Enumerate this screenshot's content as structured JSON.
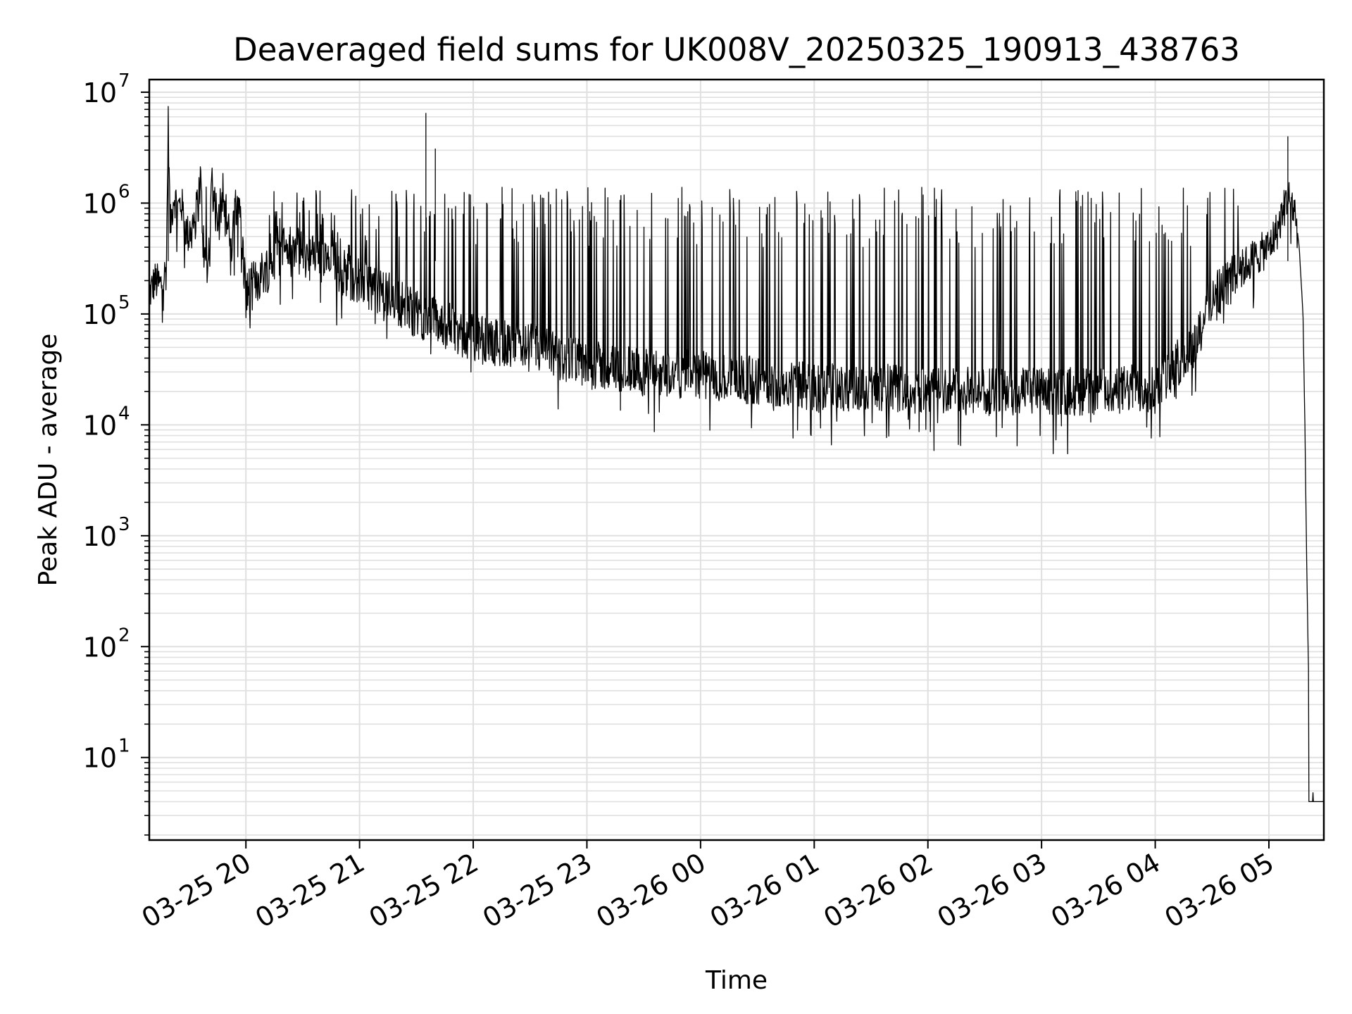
{
  "chart_data": {
    "type": "line",
    "title": "Deaveraged field sums for UK008V_20250325_190913_438763",
    "xlabel": "Time",
    "ylabel": "Peak ADU - average",
    "y_scale": "log",
    "ylim": [
      1.8,
      13000000
    ],
    "xlim": [
      "2025-03-25 19:09",
      "2025-03-26 05:29"
    ],
    "grid": true,
    "line_color": "#000000",
    "grid_color": "#e0e0e0",
    "x_ticks": [
      {
        "value": "2025-03-25 20:00",
        "label": "03-25 20"
      },
      {
        "value": "2025-03-25 21:00",
        "label": "03-25 21"
      },
      {
        "value": "2025-03-25 22:00",
        "label": "03-25 22"
      },
      {
        "value": "2025-03-25 23:00",
        "label": "03-25 23"
      },
      {
        "value": "2025-03-26 00:00",
        "label": "03-26 00"
      },
      {
        "value": "2025-03-26 01:00",
        "label": "03-26 01"
      },
      {
        "value": "2025-03-26 02:00",
        "label": "03-26 02"
      },
      {
        "value": "2025-03-26 03:00",
        "label": "03-26 03"
      },
      {
        "value": "2025-03-26 04:00",
        "label": "03-26 04"
      },
      {
        "value": "2025-03-26 05:00",
        "label": "03-26 05"
      }
    ],
    "y_ticks": [
      {
        "value": 10,
        "base": "10",
        "exp": "1"
      },
      {
        "value": 100,
        "base": "10",
        "exp": "2"
      },
      {
        "value": 1000,
        "base": "10",
        "exp": "3"
      },
      {
        "value": 10000,
        "base": "10",
        "exp": "4"
      },
      {
        "value": 100000,
        "base": "10",
        "exp": "5"
      },
      {
        "value": 1000000,
        "base": "10",
        "exp": "6"
      },
      {
        "value": 10000000,
        "base": "10",
        "exp": "7"
      }
    ],
    "series": [
      {
        "x": [
          "2025-03-25 19:09",
          "2025-03-25 19:12",
          "2025-03-25 19:15",
          "2025-03-25 19:18",
          "2025-03-25 19:19",
          "2025-03-25 19:20",
          "2025-03-25 19:22",
          "2025-03-25 19:24",
          "2025-03-25 19:26",
          "2025-03-25 19:28",
          "2025-03-25 19:30",
          "2025-03-25 19:32",
          "2025-03-25 19:34",
          "2025-03-25 19:36",
          "2025-03-25 19:38",
          "2025-03-25 19:40",
          "2025-03-25 19:42",
          "2025-03-25 19:45",
          "2025-03-25 19:48",
          "2025-03-25 19:52",
          "2025-03-25 19:56",
          "2025-03-25 20:00",
          "2025-03-25 20:10",
          "2025-03-25 20:20",
          "2025-03-25 20:30",
          "2025-03-25 20:40",
          "2025-03-25 20:50",
          "2025-03-25 21:00",
          "2025-03-25 21:15",
          "2025-03-25 21:30",
          "2025-03-25 21:45",
          "2025-03-25 22:00",
          "2025-03-25 22:30",
          "2025-03-25 23:00",
          "2025-03-25 23:30",
          "2025-03-26 00:00",
          "2025-03-26 00:30",
          "2025-03-26 01:00",
          "2025-03-26 01:30",
          "2025-03-26 02:00",
          "2025-03-26 02:30",
          "2025-03-26 03:00",
          "2025-03-26 03:30",
          "2025-03-26 04:00",
          "2025-03-26 04:20",
          "2025-03-26 04:30",
          "2025-03-26 04:40",
          "2025-03-26 04:50",
          "2025-03-26 05:00",
          "2025-03-26 05:05",
          "2025-03-26 05:08",
          "2025-03-26 05:10",
          "2025-03-26 05:12",
          "2025-03-26 05:14",
          "2025-03-26 05:16",
          "2025-03-26 05:18",
          "2025-03-26 05:19",
          "2025-03-26 05:20",
          "2025-03-26 05:21",
          "2025-03-26 05:22",
          "2025-03-26 05:29"
        ],
        "y": [
          150000,
          200000,
          180000,
          250000,
          5500000,
          600000,
          1200000,
          900000,
          1000000,
          600000,
          500000,
          700000,
          800000,
          1600000,
          300000,
          250000,
          1600000,
          700000,
          1400000,
          350000,
          1300000,
          150000,
          250000,
          400000,
          350000,
          300000,
          250000,
          200000,
          150000,
          100000,
          80000,
          60000,
          50000,
          35000,
          30000,
          28000,
          25000,
          22000,
          22000,
          21000,
          20000,
          20000,
          20000,
          22000,
          50000,
          150000,
          200000,
          300000,
          400000,
          600000,
          900000,
          1150000,
          1000000,
          800000,
          400000,
          100000,
          10000,
          500,
          50,
          4,
          4
        ]
      }
    ]
  }
}
